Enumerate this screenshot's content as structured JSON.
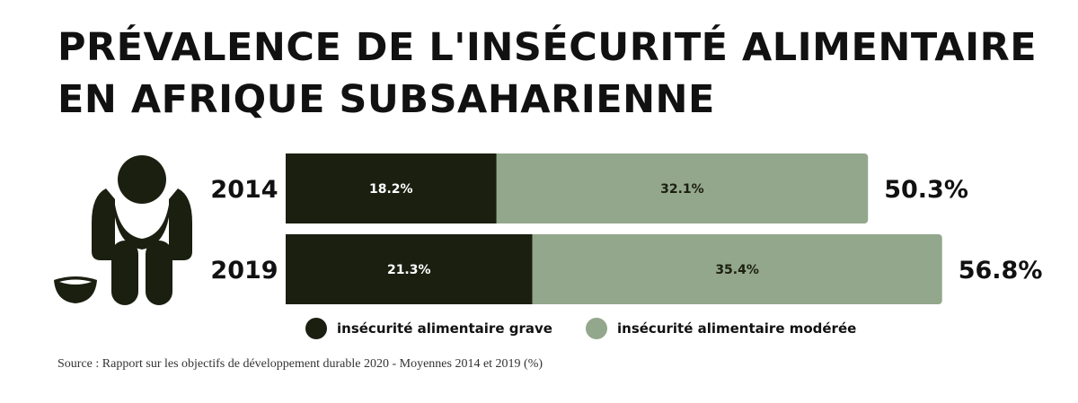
{
  "title": {
    "line1": "PRÉVALENCE DE L'INSÉCURITÉ ALIMENTAIRE",
    "line2": "EN AFRIQUE SUBSAHARIENNE"
  },
  "icon": "person-hunger-with-bowl-icon",
  "colors": {
    "severe": "#1b1f10",
    "moderate": "#93a78c",
    "text_on_dark": "#ffffff",
    "text_on_light": "#1b1f10"
  },
  "chart_data": {
    "type": "bar",
    "orientation": "horizontal",
    "stacked": true,
    "categories": [
      "2014",
      "2019"
    ],
    "series": [
      {
        "name": "insécurité alimentaire grave",
        "values": [
          18.2,
          21.3
        ],
        "labels": [
          "18.2%",
          "21.3%"
        ]
      },
      {
        "name": "insécurité alimentaire modérée",
        "values": [
          32.1,
          35.4
        ],
        "labels": [
          "32.1%",
          "35.4%"
        ]
      }
    ],
    "totals": [
      50.3,
      56.8
    ],
    "total_labels": [
      "50.3%",
      "56.8%"
    ],
    "xlim": [
      0,
      56.8
    ],
    "grid": false,
    "legend_position": "bottom"
  },
  "legend": {
    "items": [
      {
        "label": "insécurité alimentaire grave",
        "color": "#1b1f10"
      },
      {
        "label": "insécurité alimentaire modérée",
        "color": "#93a78c"
      }
    ]
  },
  "source": "Source : Rapport sur les objectifs de développement durable 2020 - Moyennes 2014 et 2019 (%)"
}
